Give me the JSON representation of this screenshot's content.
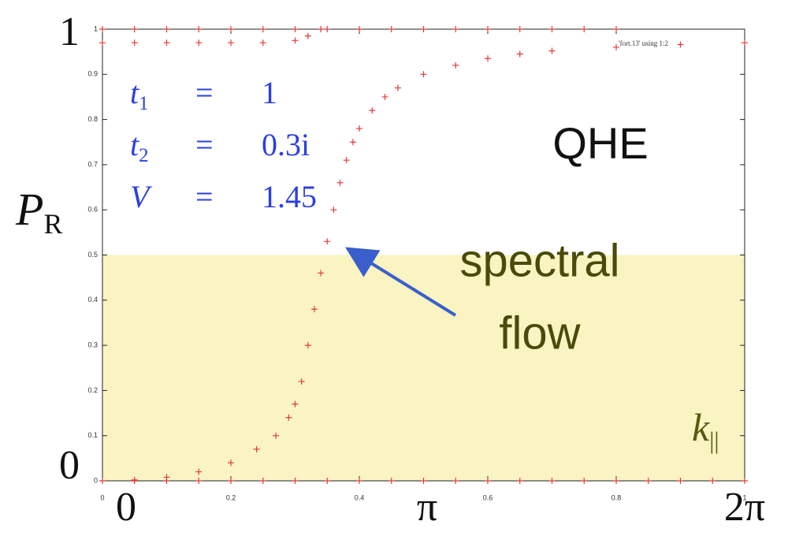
{
  "chart_data": {
    "type": "scatter",
    "legend_label": "'fort.13' using 1:2",
    "xlim": [
      0,
      1
    ],
    "ylim": [
      0,
      1
    ],
    "xticks": [
      0,
      0.2,
      0.4,
      0.6,
      0.8,
      1
    ],
    "yticks": [
      0,
      0.1,
      0.2,
      0.3,
      0.4,
      0.5,
      0.6,
      0.7,
      0.8,
      0.9,
      1
    ],
    "highlight": {
      "ylim": [
        0,
        0.5
      ],
      "color": "#f9f4c2"
    },
    "series": [
      {
        "color": "#e03a3a",
        "x": [
          0.0,
          0.05,
          0.1,
          0.15,
          0.2,
          0.24,
          0.27,
          0.29,
          0.3,
          0.31,
          0.32,
          0.33,
          0.34,
          0.35,
          0.36,
          0.37,
          0.38,
          0.39,
          0.4,
          0.42,
          0.44,
          0.46,
          0.5,
          0.55,
          0.6,
          0.65,
          0.7,
          0.8,
          0.9,
          1.0
        ],
        "values": [
          0,
          0.002,
          0.008,
          0.02,
          0.04,
          0.07,
          0.1,
          0.14,
          0.17,
          0.22,
          0.3,
          0.38,
          0.46,
          0.53,
          0.6,
          0.66,
          0.71,
          0.75,
          0.78,
          0.82,
          0.85,
          0.87,
          0.9,
          0.92,
          0.935,
          0.945,
          0.952,
          0.96,
          0.966,
          0.97
        ]
      },
      {
        "color": "#e03a3a",
        "x": [
          0.0,
          0.05,
          0.1,
          0.15,
          0.2,
          0.25,
          0.3,
          0.35,
          0.4,
          0.45,
          0.5,
          0.55,
          0.6,
          0.65,
          0.7,
          0.75,
          0.8
        ],
        "values": [
          1,
          1,
          1,
          1,
          1,
          1,
          1,
          1,
          1,
          1,
          1,
          1,
          1,
          1,
          1,
          1,
          1
        ]
      },
      {
        "color": "#e03a3a",
        "x": [
          0.0,
          0.05,
          0.1,
          0.15,
          0.2,
          0.25,
          0.3,
          0.32,
          0.34
        ],
        "values": [
          0.97,
          0.97,
          0.97,
          0.97,
          0.97,
          0.97,
          0.975,
          0.985,
          1
        ]
      },
      {
        "color": "#e03a3a",
        "x": [
          0.05,
          0.1,
          0.15,
          0.2,
          0.25,
          0.3,
          0.35,
          0.4,
          0.45,
          0.5,
          0.55,
          0.6,
          0.65,
          0.7,
          0.75,
          0.8,
          0.85,
          0.9,
          0.95,
          1.0
        ],
        "values": [
          0,
          0,
          0,
          0,
          0,
          0,
          0,
          0,
          0,
          0,
          0,
          0,
          0,
          0,
          0,
          0,
          0,
          0,
          0,
          0
        ]
      }
    ],
    "params": [
      {
        "symbol": "t",
        "sub": "1",
        "eq": "=",
        "value": "1"
      },
      {
        "symbol": "t",
        "sub": "2",
        "eq": "=",
        "value": "0.3i"
      },
      {
        "symbol": "V",
        "sub": "",
        "eq": "=",
        "value": "1.45"
      }
    ],
    "ylabel": {
      "symbol": "P",
      "sub": "R"
    },
    "xlabel": {
      "symbol": "k",
      "sub": "||"
    },
    "y_axis_labels": [
      "0",
      "1"
    ],
    "x_axis_labels": [
      "0",
      "π",
      "2π"
    ],
    "model_label": "QHE",
    "annotation": [
      "spectral",
      "flow"
    ]
  }
}
